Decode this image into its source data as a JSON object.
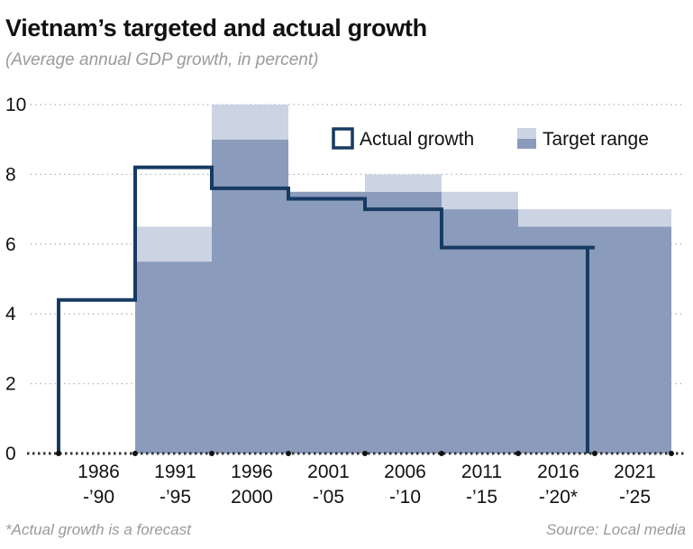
{
  "header": {
    "title": "Vietnam’s targeted and actual growth",
    "subtitle": "(Average annual GDP growth, in percent)"
  },
  "footer": {
    "footnote": "*Actual growth is a forecast",
    "source": "Source: Local media"
  },
  "colors": {
    "actual_line": "#173a63",
    "target_low": "#8a9bbb",
    "target_high": "#ccd4e3",
    "grid": "#aaaaaa",
    "axis": "#111111"
  },
  "chart_data": {
    "type": "area",
    "title": "Vietnam’s targeted and actual growth",
    "subtitle": "(Average annual GDP growth, in percent)",
    "ylim": [
      0,
      10
    ],
    "yticks": [
      0,
      2,
      4,
      6,
      8,
      10
    ],
    "grid": "horizontal dotted",
    "legend_position": "top-right",
    "categories": [
      [
        "1986",
        "-’90"
      ],
      [
        "1991",
        "-’95"
      ],
      [
        "1996",
        "2000"
      ],
      [
        "2001",
        "-’05"
      ],
      [
        "2006",
        "-’10"
      ],
      [
        "2011",
        "-’15"
      ],
      [
        "2016",
        "-’20*"
      ],
      [
        "2021",
        "-’25"
      ]
    ],
    "series": [
      {
        "name": "Actual growth",
        "type": "step",
        "values": [
          4.4,
          8.2,
          7.6,
          7.3,
          7.0,
          5.9,
          5.9,
          null
        ]
      },
      {
        "name": "Target range",
        "type": "range",
        "low": [
          null,
          5.5,
          9.0,
          7.5,
          7.5,
          7.0,
          6.5,
          6.5
        ],
        "high": [
          null,
          6.5,
          10.0,
          7.5,
          8.0,
          7.5,
          7.0,
          7.0
        ]
      }
    ]
  }
}
